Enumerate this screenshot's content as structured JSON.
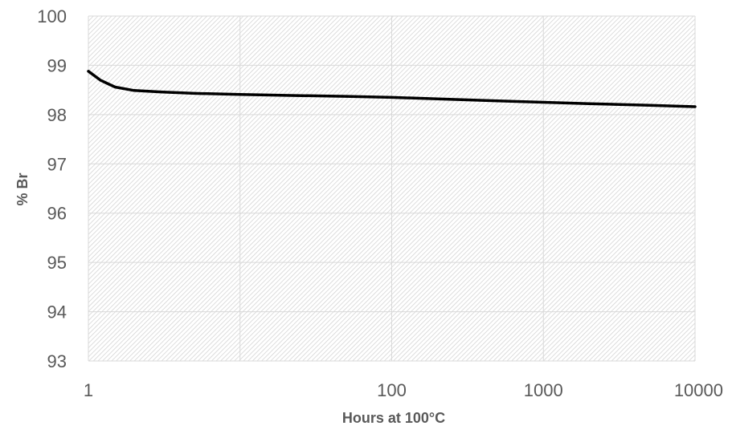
{
  "chart_data": {
    "type": "line",
    "title": "",
    "xlabel": "Hours at 100°C",
    "ylabel": "% Br",
    "x_scale": "log",
    "xlim": [
      1,
      10000
    ],
    "ylim": [
      93,
      100
    ],
    "x_ticks": [
      "1",
      "100",
      "1000",
      "10000"
    ],
    "x_tick_values": [
      1,
      100,
      1000,
      10000
    ],
    "y_ticks": [
      "93",
      "94",
      "95",
      "96",
      "97",
      "98",
      "99",
      "100"
    ],
    "y_tick_values": [
      93,
      94,
      95,
      96,
      97,
      98,
      99,
      100
    ],
    "grid": true,
    "legend": "none",
    "colors": {
      "line": "#000000",
      "grid": "#d9d9d9",
      "plot_pattern": "#cfcfcf"
    },
    "series": [
      {
        "x": [
          1,
          1.2,
          1.5,
          2,
          3,
          5,
          10,
          20,
          50,
          100,
          200,
          500,
          1000,
          2000,
          5000,
          10000
        ],
        "y": [
          98.88,
          98.7,
          98.56,
          98.49,
          98.46,
          98.43,
          98.41,
          98.39,
          98.37,
          98.35,
          98.32,
          98.28,
          98.25,
          98.22,
          98.19,
          98.16
        ]
      }
    ]
  }
}
